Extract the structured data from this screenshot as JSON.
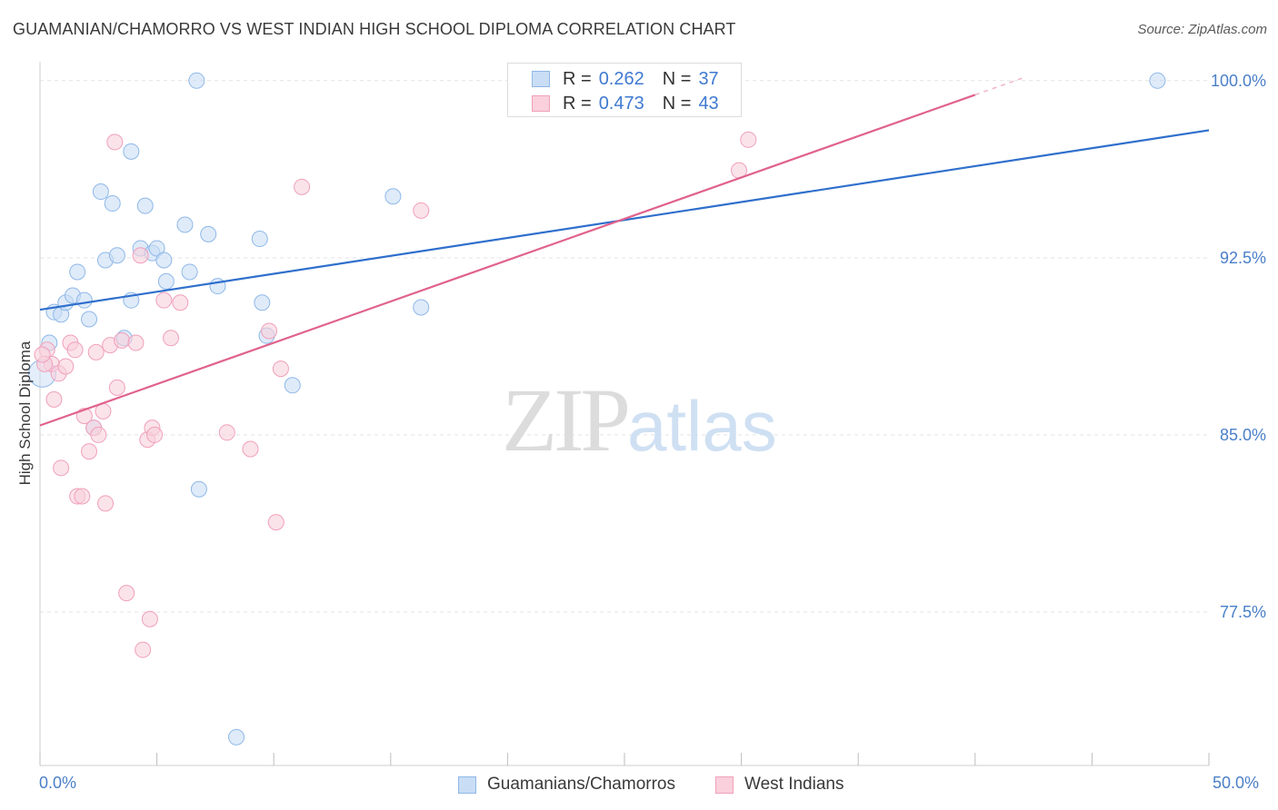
{
  "chart_data": {
    "type": "scatter",
    "title": "GUAMANIAN/CHAMORRO VS WEST INDIAN HIGH SCHOOL DIPLOMA CORRELATION CHART",
    "source": "Source: ZipAtlas.com",
    "ylabel": "High School Diploma",
    "xlabel": "",
    "xlim": [
      0,
      50
    ],
    "ylim": [
      71.0,
      100.8
    ],
    "x_tick_labels": [
      "0.0%",
      "50.0%"
    ],
    "y_ticks": [
      {
        "value": 100.0,
        "label": "100.0%"
      },
      {
        "value": 92.5,
        "label": "92.5%"
      },
      {
        "value": 85.0,
        "label": "85.0%"
      },
      {
        "value": 77.5,
        "label": "77.5%"
      }
    ],
    "watermark": {
      "zip": "ZIP",
      "atlas": "atlas"
    },
    "legend": [
      {
        "r_label": "R =",
        "r_value": "0.262",
        "n_label": "N =",
        "n_value": "37"
      },
      {
        "r_label": "R =",
        "r_value": "0.473",
        "n_label": "N =",
        "n_value": "43"
      }
    ],
    "series": [
      {
        "name": "Guamanians/Chamorros",
        "color": "#8fb8e8",
        "fill": "#c9ddf5",
        "line_color": "#2f6fcc",
        "trend": {
          "x0": 0,
          "y0": 90.3,
          "x1": 50,
          "y1": 97.9
        },
        "points": [
          [
            0.4,
            88.9
          ],
          [
            0.6,
            90.2
          ],
          [
            0.9,
            90.1
          ],
          [
            1.1,
            90.6
          ],
          [
            1.4,
            90.9
          ],
          [
            1.6,
            91.9
          ],
          [
            1.9,
            90.7
          ],
          [
            2.1,
            89.9
          ],
          [
            2.3,
            85.3
          ],
          [
            2.6,
            95.3
          ],
          [
            3.1,
            94.8
          ],
          [
            2.8,
            92.4
          ],
          [
            3.3,
            92.6
          ],
          [
            3.6,
            89.1
          ],
          [
            3.9,
            90.7
          ],
          [
            3.9,
            97.0
          ],
          [
            4.3,
            92.9
          ],
          [
            4.5,
            94.7
          ],
          [
            4.8,
            92.7
          ],
          [
            5.0,
            92.9
          ],
          [
            5.3,
            92.4
          ],
          [
            5.4,
            91.5
          ],
          [
            6.2,
            93.9
          ],
          [
            6.4,
            91.9
          ],
          [
            6.7,
            100.0
          ],
          [
            6.8,
            82.7
          ],
          [
            7.2,
            93.5
          ],
          [
            7.6,
            91.3
          ],
          [
            8.4,
            72.2
          ],
          [
            9.4,
            93.3
          ],
          [
            9.5,
            90.6
          ],
          [
            9.7,
            89.2
          ],
          [
            10.8,
            87.1
          ],
          [
            15.1,
            95.1
          ],
          [
            16.3,
            90.4
          ],
          [
            0.1,
            87.6
          ],
          [
            47.8,
            100.0
          ]
        ]
      },
      {
        "name": "West Indians",
        "color": "#f0a0bb",
        "fill": "#f9d0dc",
        "line_color": "#e0628c",
        "trend": {
          "x0": 0,
          "y0": 85.4,
          "x1": 40.0,
          "y1": 99.4
        },
        "trend_dashed": {
          "x0": 40.0,
          "y0": 99.4,
          "x1": 42.0,
          "y1": 100.1
        },
        "points": [
          [
            0.3,
            88.6
          ],
          [
            0.5,
            88.0
          ],
          [
            0.6,
            86.5
          ],
          [
            0.8,
            87.6
          ],
          [
            0.9,
            83.6
          ],
          [
            1.1,
            87.9
          ],
          [
            1.3,
            88.9
          ],
          [
            1.5,
            88.6
          ],
          [
            1.6,
            82.4
          ],
          [
            1.8,
            82.4
          ],
          [
            1.9,
            85.8
          ],
          [
            2.1,
            84.3
          ],
          [
            2.3,
            85.3
          ],
          [
            2.4,
            88.5
          ],
          [
            2.5,
            85.0
          ],
          [
            2.7,
            86.0
          ],
          [
            2.8,
            82.1
          ],
          [
            3.0,
            88.8
          ],
          [
            3.2,
            97.4
          ],
          [
            3.3,
            87.0
          ],
          [
            3.5,
            89.0
          ],
          [
            3.7,
            78.3
          ],
          [
            4.1,
            88.9
          ],
          [
            4.3,
            92.6
          ],
          [
            4.4,
            75.9
          ],
          [
            4.6,
            84.8
          ],
          [
            4.7,
            77.2
          ],
          [
            4.8,
            85.3
          ],
          [
            4.9,
            85.0
          ],
          [
            5.3,
            90.7
          ],
          [
            5.6,
            89.1
          ],
          [
            6.0,
            90.6
          ],
          [
            8.0,
            85.1
          ],
          [
            9.0,
            84.4
          ],
          [
            9.8,
            89.4
          ],
          [
            10.1,
            81.3
          ],
          [
            10.3,
            87.8
          ],
          [
            11.2,
            95.5
          ],
          [
            16.3,
            94.5
          ],
          [
            29.9,
            96.2
          ],
          [
            30.3,
            97.5
          ],
          [
            0.2,
            88.0
          ],
          [
            0.1,
            88.4
          ]
        ]
      }
    ]
  },
  "bottom_legend": [
    "Guamanians/Chamorros",
    "West Indians"
  ]
}
